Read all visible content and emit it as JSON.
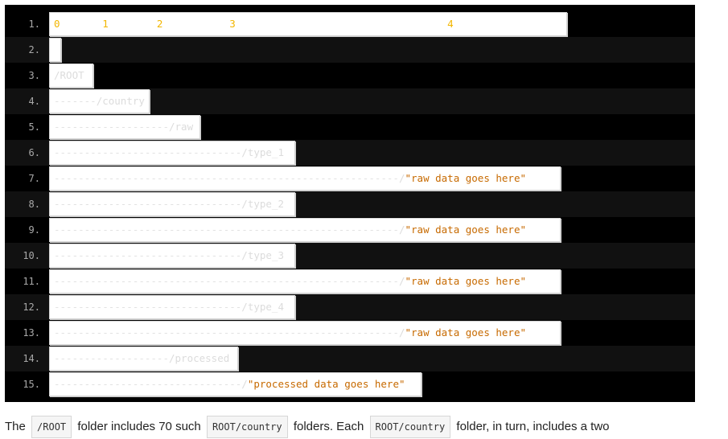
{
  "code_block": {
    "lines": [
      {
        "num": "1.",
        "ruler": "0       1        2           3                                   4"
      },
      {
        "num": "2.",
        "dashes": "",
        "path": ""
      },
      {
        "num": "3.",
        "dashes": "",
        "path": "/ROOT"
      },
      {
        "num": "4.",
        "dashes": "-------",
        "path": "/country"
      },
      {
        "num": "5.",
        "dashes": "-------------------",
        "path": "/raw"
      },
      {
        "num": "6.",
        "dashes": "-------------------------------",
        "path": "/type_1"
      },
      {
        "num": "7.",
        "dashes": "---------------------------------------------------------",
        "path": "/",
        "str": "\"raw data goes here\""
      },
      {
        "num": "8.",
        "dashes": "-------------------------------",
        "path": "/type_2"
      },
      {
        "num": "9.",
        "dashes": "---------------------------------------------------------",
        "path": "/",
        "str": "\"raw data goes here\""
      },
      {
        "num": "10.",
        "dashes": "-------------------------------",
        "path": "/type_3"
      },
      {
        "num": "11.",
        "dashes": "---------------------------------------------------------",
        "path": "/",
        "str": "\"raw data goes here\""
      },
      {
        "num": "12.",
        "dashes": "-------------------------------",
        "path": "/type_4"
      },
      {
        "num": "13.",
        "dashes": "---------------------------------------------------------",
        "path": "/",
        "str": "\"raw data goes here\""
      },
      {
        "num": "14.",
        "dashes": "-------------------",
        "path": "/processed"
      },
      {
        "num": "15.",
        "dashes": "-------------------------------",
        "path": "/",
        "str": "\"processed data goes here\""
      }
    ]
  },
  "prose": {
    "t1": "The",
    "c1": "/ROOT",
    "t2": "folder includes 70 such",
    "c2": "ROOT/country",
    "t3": "folders. Each",
    "c3": "ROOT/country",
    "t4": "folder, in turn, includes a two"
  }
}
